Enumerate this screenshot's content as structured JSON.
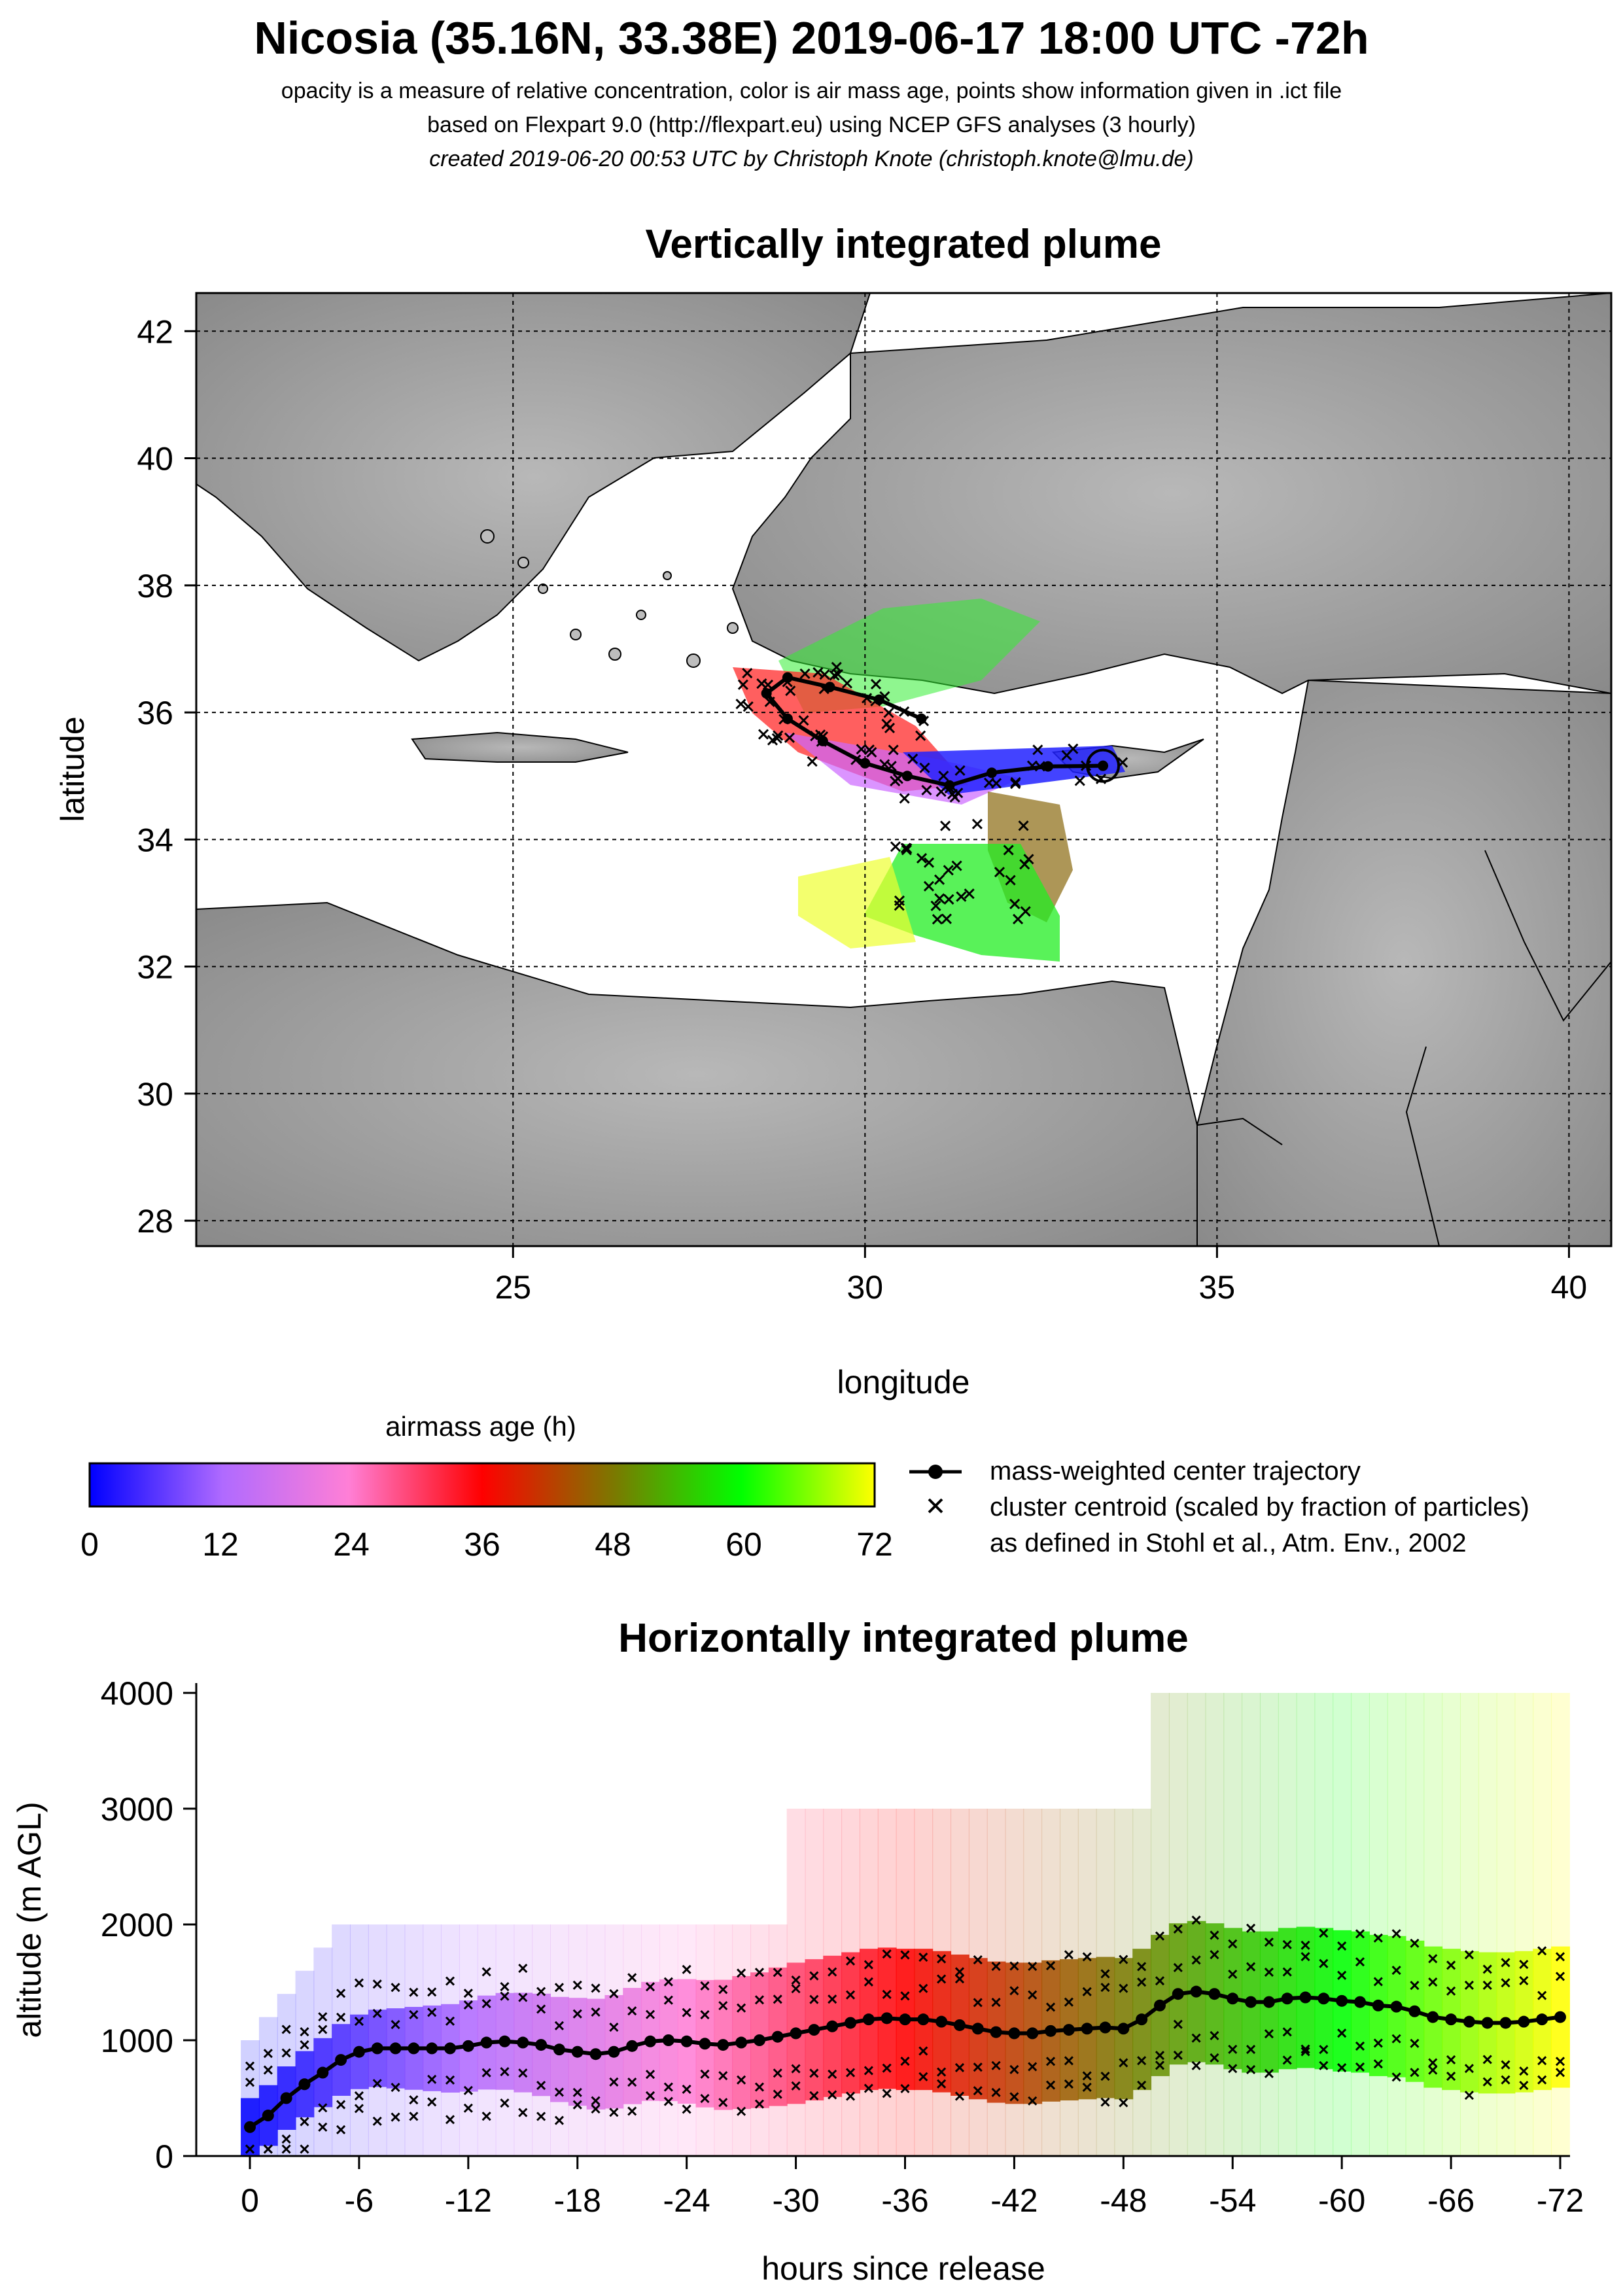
{
  "header": {
    "title": "Nicosia (35.16N, 33.38E) 2019-06-17 18:00 UTC -72h",
    "line1": "opacity is a measure of relative concentration, color is air mass age, points show information given in .ict file",
    "line2": "based on Flexpart 9.0 (http://flexpart.eu) using NCEP GFS analyses (3 hourly)",
    "line3": "created 2019-06-20 00:53 UTC by Christoph Knote (christoph.knote@lmu.de)"
  },
  "colors": {
    "age_scale": [
      "#0000ff",
      "#b06aff",
      "#ff7fd6",
      "#ff0000",
      "#7a7a00",
      "#00ff00",
      "#ffff00"
    ],
    "land": "#a0a0a0",
    "sea": "#ffffff"
  },
  "legend": {
    "colorbar_title": "airmass age (h)",
    "colorbar_ticks": [
      "0",
      "12",
      "24",
      "36",
      "48",
      "60",
      "72"
    ],
    "trajectory_label": "mass-weighted center trajectory",
    "cluster_label_1": "cluster centroid (scaled by fraction of particles)",
    "cluster_label_2": "as defined in Stohl et al., Atm. Env., 2002"
  },
  "chart_data": [
    {
      "type": "map",
      "title": "Vertically integrated plume",
      "xlabel": "longitude",
      "ylabel": "latitude",
      "xlim": [
        20.5,
        40.6
      ],
      "ylim": [
        27.6,
        42.6
      ],
      "x_ticks": [
        25,
        30,
        35,
        40
      ],
      "y_ticks": [
        28,
        30,
        32,
        34,
        36,
        38,
        40,
        42
      ],
      "grid": true,
      "release_point": {
        "lon": 33.38,
        "lat": 35.16
      },
      "center_trajectory": {
        "lon": [
          33.38,
          32.6,
          31.8,
          31.2,
          30.6,
          30.0,
          29.4,
          28.9,
          28.6,
          28.9,
          29.5,
          30.2,
          30.8
        ],
        "lat": [
          35.16,
          35.15,
          35.05,
          34.85,
          35.0,
          35.2,
          35.55,
          35.9,
          36.3,
          36.55,
          36.4,
          36.2,
          35.9
        ]
      }
    },
    {
      "type": "heatmap",
      "title": "Horizontally integrated plume",
      "xlabel": "hours since release",
      "ylabel": "altitude (m AGL)",
      "x_ticks": [
        "0",
        "-6",
        "-12",
        "-18",
        "-24",
        "-30",
        "-36",
        "-42",
        "-48",
        "-54",
        "-60",
        "-66",
        "-72"
      ],
      "y_ticks": [
        0,
        1000,
        2000,
        3000,
        4000
      ],
      "xlim": [
        -1,
        73
      ],
      "ylim": [
        0,
        4000
      ],
      "center_trajectory": {
        "hours": [
          0,
          1,
          2,
          3,
          4,
          5,
          6,
          7,
          8,
          9,
          10,
          11,
          12,
          13,
          14,
          15,
          16,
          17,
          18,
          19,
          20,
          21,
          22,
          23,
          24,
          25,
          26,
          27,
          28,
          29,
          30,
          31,
          32,
          33,
          34,
          35,
          36,
          37,
          38,
          39,
          40,
          41,
          42,
          43,
          44,
          45,
          46,
          47,
          48,
          49,
          50,
          51,
          52,
          53,
          54,
          55,
          56,
          57,
          58,
          59,
          60,
          61,
          62,
          63,
          64,
          65,
          66,
          67,
          68,
          69,
          70,
          71,
          72
        ],
        "altitude": [
          250,
          350,
          500,
          620,
          720,
          830,
          900,
          930,
          930,
          930,
          930,
          930,
          950,
          980,
          990,
          980,
          960,
          920,
          900,
          880,
          900,
          950,
          990,
          1000,
          990,
          970,
          960,
          980,
          1000,
          1030,
          1060,
          1090,
          1120,
          1150,
          1180,
          1190,
          1180,
          1180,
          1160,
          1130,
          1100,
          1070,
          1060,
          1060,
          1080,
          1090,
          1100,
          1110,
          1100,
          1180,
          1300,
          1400,
          1420,
          1400,
          1360,
          1330,
          1330,
          1360,
          1370,
          1360,
          1340,
          1330,
          1300,
          1290,
          1250,
          1200,
          1180,
          1160,
          1150,
          1150,
          1160,
          1180,
          1200
        ]
      }
    }
  ]
}
